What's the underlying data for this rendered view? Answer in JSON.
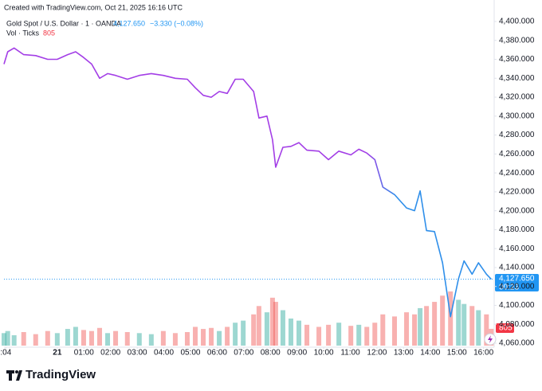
{
  "chart_data": {
    "type": "line",
    "created": "Created with TradingView.com, Oct 21, 2025 16:16 UTC",
    "symbol": "Gold Spot / U.S. Dollar · 1 · OANDA",
    "last_label": "4,127.650",
    "change": "−3.330 (−0.08%)",
    "volume_title": "Vol · Ticks",
    "countdown": "00:23",
    "brand": "TradingView",
    "colors": [
      "#a33ee6",
      "#2f8fea"
    ],
    "volume_colors": [
      "#26a69a",
      "#ef5350"
    ],
    "last_price": 4127.65,
    "x": [
      -2.0,
      -1.86,
      -1.62,
      -1.26,
      -0.81,
      -0.36,
      0,
      0.39,
      0.69,
      0.99,
      1.29,
      1.59,
      1.89,
      2.19,
      2.63,
      3.08,
      3.53,
      3.98,
      4.43,
      4.88,
      5.18,
      5.48,
      5.78,
      6.08,
      6.38,
      6.68,
      6.98,
      7.37,
      7.57,
      7.87,
      8.08,
      8.2,
      8.47,
      8.77,
      9.07,
      9.37,
      9.82,
      10.18,
      10.57,
      11.02,
      11.32,
      11.62,
      11.92,
      12.22,
      12.66,
      13.11,
      13.41,
      13.62,
      13.86,
      14.16,
      14.46,
      14.76,
      15.06,
      15.27,
      15.57,
      15.81,
      16.11,
      16.29
    ],
    "series": [
      {
        "values": [
          4355,
          4368,
          4372,
          4365,
          4364,
          4360,
          4360,
          4365,
          4368,
          4362,
          4355,
          4340,
          4345,
          4343,
          4339,
          4343,
          4345,
          4343,
          4340,
          4339,
          4330,
          4322,
          4320,
          4326,
          4324,
          4339,
          4339,
          4326,
          4298,
          4300,
          4275,
          4246,
          4267,
          4268,
          4272,
          4264,
          4263,
          4254,
          4263,
          4259,
          4265,
          4261,
          4254,
          4225,
          4217,
          4203,
          4200,
          4221,
          4179,
          4178,
          4145,
          4088,
          4128,
          4147,
          4133,
          4145,
          4133,
          4127.65
        ]
      }
    ],
    "volume": {
      "values": [
        600,
        700,
        500,
        650,
        550,
        700,
        600,
        800,
        900,
        750,
        700,
        850,
        600,
        700,
        650,
        600,
        550,
        700,
        600,
        650,
        900,
        800,
        850,
        700,
        900,
        1100,
        1200,
        1500,
        1900,
        1600,
        2300,
        2100,
        1700,
        1300,
        1200,
        1000,
        900,
        1000,
        1100,
        950,
        1000,
        900,
        1100,
        1500,
        1400,
        1600,
        1500,
        1800,
        1900,
        2100,
        2400,
        2600,
        2200,
        2000,
        1900,
        1700,
        1500,
        805
      ]
    },
    "xlim": [
      -2.0,
      16.4
    ],
    "xticks": [
      {
        "value": -1.93,
        "label": ":04"
      },
      {
        "value": 0,
        "label": "21"
      },
      {
        "value": 1,
        "label": "01:00"
      },
      {
        "value": 2,
        "label": "02:00"
      },
      {
        "value": 3,
        "label": "03:00"
      },
      {
        "value": 4,
        "label": "04:00"
      },
      {
        "value": 5,
        "label": "05:00"
      },
      {
        "value": 6,
        "label": "06:00"
      },
      {
        "value": 7,
        "label": "07:00"
      },
      {
        "value": 8,
        "label": "08:00"
      },
      {
        "value": 9,
        "label": "09:00"
      },
      {
        "value": 10,
        "label": "10:00"
      },
      {
        "value": 11,
        "label": "11:00"
      },
      {
        "value": 12,
        "label": "12:00"
      },
      {
        "value": 13,
        "label": "13:00"
      },
      {
        "value": 14,
        "label": "14:00"
      },
      {
        "value": 15,
        "label": "15:00"
      },
      {
        "value": 16,
        "label": "16:00"
      }
    ],
    "ylim": [
      4060,
      4400
    ],
    "yticks": [
      {
        "value": 4060,
        "label": "4,060.000"
      },
      {
        "value": 4080,
        "label": "4,080.000"
      },
      {
        "value": 4100,
        "label": "4,100.000"
      },
      {
        "value": 4120,
        "label": "4,120.000"
      },
      {
        "value": 4140,
        "label": "4,140.000"
      },
      {
        "value": 4160,
        "label": "4,160.000"
      },
      {
        "value": 4180,
        "label": "4,180.000"
      },
      {
        "value": 4200,
        "label": "4,200.000"
      },
      {
        "value": 4220,
        "label": "4,220.000"
      },
      {
        "value": 4240,
        "label": "4,240.000"
      },
      {
        "value": 4260,
        "label": "4,260.000"
      },
      {
        "value": 4280,
        "label": "4,280.000"
      },
      {
        "value": 4300,
        "label": "4,300.000"
      },
      {
        "value": 4320,
        "label": "4,320.000"
      },
      {
        "value": 4340,
        "label": "4,340.000"
      },
      {
        "value": 4360,
        "label": "4,360.000"
      },
      {
        "value": 4380,
        "label": "4,380.000"
      },
      {
        "value": 4400,
        "label": "4,400.000"
      }
    ],
    "grid": false
  }
}
